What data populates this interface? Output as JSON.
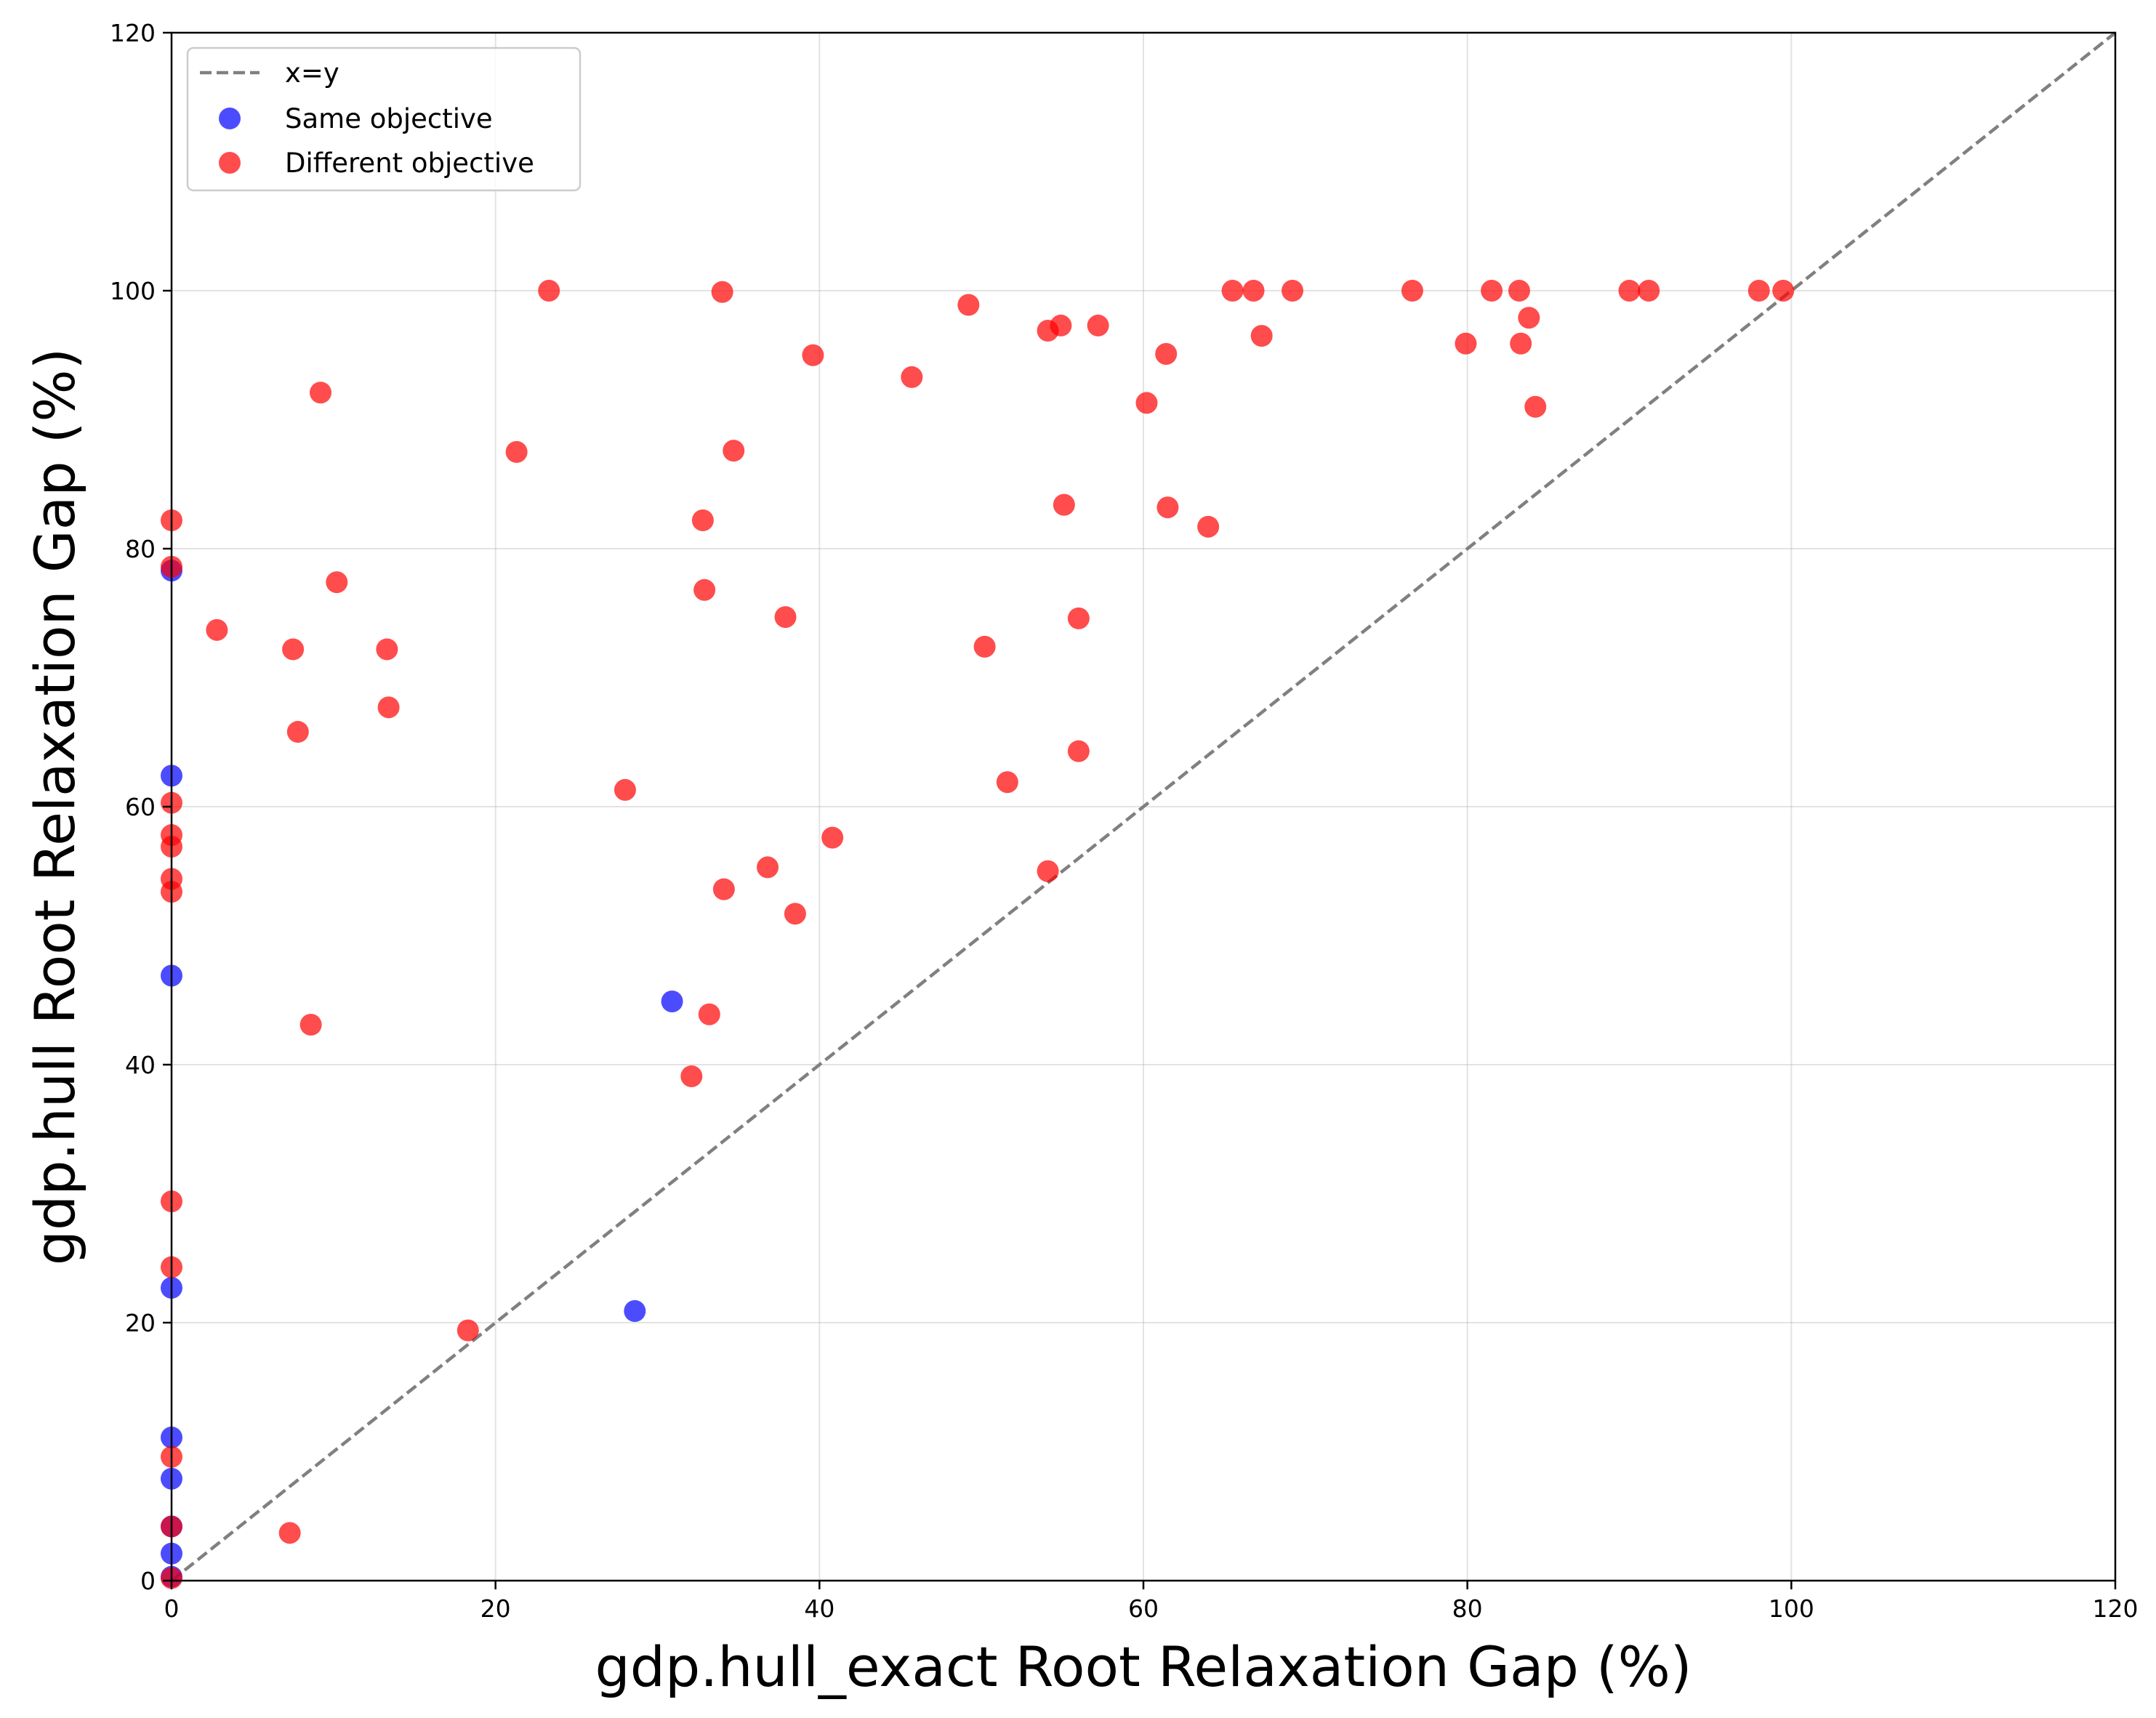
{
  "chart_data": {
    "type": "scatter",
    "title": "",
    "xlabel": "gdp.hull_exact Root Relaxation Gap (%)",
    "ylabel": "gdp.hull Root Relaxation Gap (%)",
    "xlim": [
      0,
      120
    ],
    "ylim": [
      0,
      120
    ],
    "xticks": [
      "0",
      "20",
      "40",
      "60",
      "80",
      "100",
      "120"
    ],
    "yticks": [
      "0",
      "20",
      "40",
      "60",
      "80",
      "100",
      "120"
    ],
    "grid": true,
    "legend_position": "upper-left",
    "reference_line": {
      "label": "x=y",
      "color": "#808080",
      "style": "dashed"
    },
    "series": [
      {
        "name": "Same objective",
        "color": "#0000ff",
        "points": [
          [
            0,
            78.3
          ],
          [
            0,
            62.4
          ],
          [
            0,
            46.9
          ],
          [
            0,
            22.7
          ],
          [
            0,
            11.1
          ],
          [
            0,
            7.9
          ],
          [
            0,
            4.2
          ],
          [
            0,
            2.1
          ],
          [
            0,
            0.3
          ],
          [
            30.9,
            44.9
          ],
          [
            28.6,
            20.9
          ]
        ]
      },
      {
        "name": "Different objective",
        "color": "#ff0000",
        "points": [
          [
            0,
            82.2
          ],
          [
            0,
            78.6
          ],
          [
            0,
            60.3
          ],
          [
            0,
            57.8
          ],
          [
            0,
            56.9
          ],
          [
            0,
            54.4
          ],
          [
            0,
            53.4
          ],
          [
            0,
            29.4
          ],
          [
            0,
            24.3
          ],
          [
            0,
            9.6
          ],
          [
            0,
            4.2
          ],
          [
            0,
            0.2
          ],
          [
            2.8,
            73.7
          ],
          [
            7.3,
            3.7
          ],
          [
            7.5,
            72.2
          ],
          [
            7.8,
            65.8
          ],
          [
            8.6,
            43.1
          ],
          [
            9.2,
            92.1
          ],
          [
            10.2,
            77.4
          ],
          [
            13.3,
            72.2
          ],
          [
            13.4,
            67.7
          ],
          [
            18.3,
            19.4
          ],
          [
            21.3,
            87.5
          ],
          [
            23.3,
            100
          ],
          [
            28.0,
            61.3
          ],
          [
            32.1,
            39.1
          ],
          [
            32.8,
            82.2
          ],
          [
            32.9,
            76.8
          ],
          [
            33.2,
            43.9
          ],
          [
            34.0,
            99.9
          ],
          [
            34.1,
            53.6
          ],
          [
            34.7,
            87.6
          ],
          [
            36.8,
            55.3
          ],
          [
            37.9,
            74.7
          ],
          [
            38.5,
            51.7
          ],
          [
            39.6,
            95.0
          ],
          [
            40.8,
            57.6
          ],
          [
            45.7,
            93.3
          ],
          [
            49.2,
            98.9
          ],
          [
            50.2,
            72.4
          ],
          [
            51.6,
            61.9
          ],
          [
            54.1,
            96.9
          ],
          [
            54.1,
            55.0
          ],
          [
            54.9,
            97.3
          ],
          [
            55.1,
            83.4
          ],
          [
            56.0,
            74.6
          ],
          [
            56.0,
            64.3
          ],
          [
            57.2,
            97.3
          ],
          [
            60.2,
            91.3
          ],
          [
            61.4,
            95.1
          ],
          [
            61.5,
            83.2
          ],
          [
            64.0,
            81.7
          ],
          [
            65.5,
            100
          ],
          [
            66.8,
            100
          ],
          [
            67.3,
            96.5
          ],
          [
            69.2,
            100
          ],
          [
            76.6,
            100
          ],
          [
            79.9,
            95.9
          ],
          [
            81.5,
            100
          ],
          [
            83.2,
            100
          ],
          [
            83.3,
            95.9
          ],
          [
            83.8,
            97.9
          ],
          [
            84.2,
            91.0
          ],
          [
            90.0,
            100
          ],
          [
            91.2,
            100
          ],
          [
            98.0,
            100
          ],
          [
            99.5,
            100
          ]
        ]
      }
    ]
  }
}
